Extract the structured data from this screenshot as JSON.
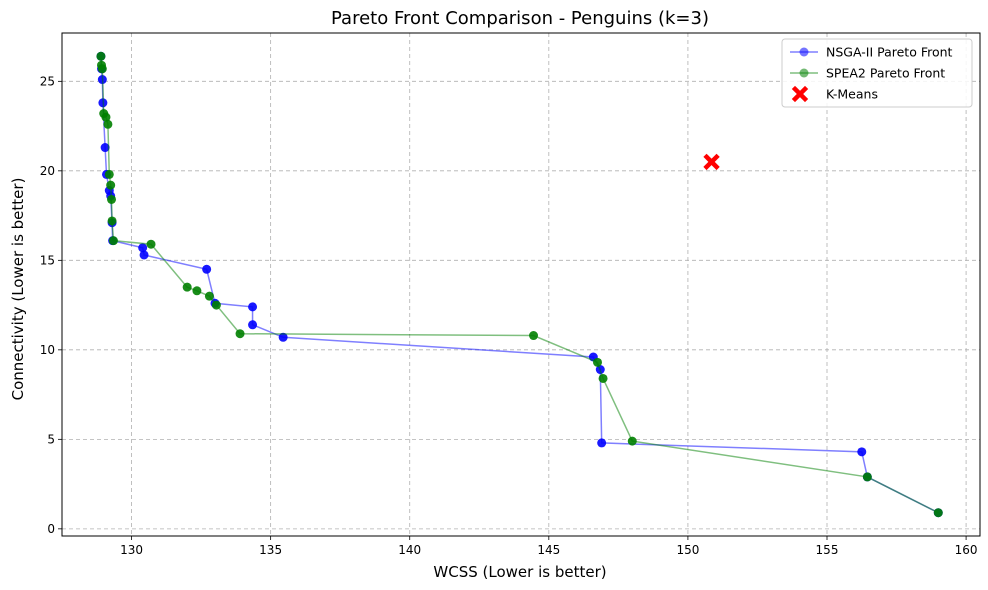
{
  "chart_data": {
    "type": "line",
    "title": "Pareto Front Comparison - Penguins (k=3)",
    "xlabel": "WCSS (Lower is better)",
    "ylabel": "Connectivity (Lower is better)",
    "xlim": [
      127.5,
      160.5
    ],
    "ylim": [
      -0.4,
      27.7
    ],
    "xticks": [
      130,
      135,
      140,
      145,
      150,
      155,
      160
    ],
    "yticks": [
      0,
      5,
      10,
      15,
      20,
      25
    ],
    "grid": true,
    "legend_position": "top-right",
    "series": [
      {
        "name": "NSGA-II Pareto Front",
        "type": "line",
        "color": "#0000ff",
        "x": [
          128.9,
          128.92,
          128.95,
          128.97,
          129.05,
          129.1,
          129.2,
          129.25,
          129.3,
          129.32,
          130.4,
          130.45,
          132.7,
          133.0,
          134.35,
          134.35,
          135.45,
          146.6,
          146.85,
          146.9,
          156.25,
          156.45,
          159.0
        ],
        "y": [
          26.4,
          25.7,
          25.1,
          23.8,
          21.3,
          19.8,
          18.9,
          18.6,
          17.1,
          16.1,
          15.7,
          15.3,
          14.5,
          12.6,
          12.4,
          11.4,
          10.7,
          9.6,
          8.9,
          4.8,
          4.3,
          2.9,
          0.9
        ]
      },
      {
        "name": "SPEA2 Pareto Front",
        "type": "line",
        "color": "#008000",
        "x": [
          128.9,
          128.92,
          128.95,
          129.0,
          129.08,
          129.15,
          129.2,
          129.25,
          129.28,
          129.3,
          129.35,
          130.7,
          132.0,
          132.35,
          132.8,
          133.05,
          133.9,
          144.45,
          146.75,
          146.95,
          148.0,
          156.45,
          159.0
        ],
        "y": [
          26.4,
          25.9,
          25.7,
          23.2,
          23.0,
          22.6,
          19.8,
          19.2,
          18.4,
          17.2,
          16.1,
          15.9,
          13.5,
          13.3,
          13.0,
          12.5,
          10.9,
          10.8,
          9.3,
          8.4,
          4.9,
          2.9,
          0.9
        ]
      },
      {
        "name": "K-Means",
        "type": "scatter",
        "color": "#ff0000",
        "marker": "X",
        "x": [
          150.85
        ],
        "y": [
          20.5
        ]
      }
    ]
  }
}
